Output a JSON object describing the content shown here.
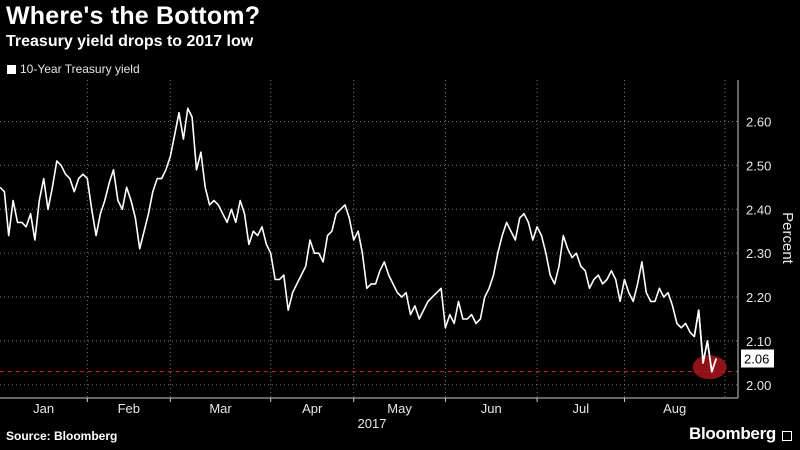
{
  "chart_data": {
    "type": "line",
    "title": "Where's the Bottom?",
    "subtitle": "Treasury yield drops to 2017 low",
    "ylabel": "Percent",
    "year_label": "2017",
    "source": "Source: Bloomberg",
    "brand": "Bloomberg",
    "ylim": [
      1.97,
      2.69
    ],
    "yticks": [
      2.0,
      2.1,
      2.2,
      2.3,
      2.4,
      2.5,
      2.6
    ],
    "ytick_labels": [
      "2.00",
      "2.10",
      "2.20",
      "2.30",
      "2.40",
      "2.50",
      "2.60"
    ],
    "months": [
      "Jan",
      "Feb",
      "Mar",
      "Apr",
      "May",
      "Jun",
      "Jul",
      "Aug"
    ],
    "x_range": [
      0,
      169
    ],
    "month_starts": [
      0,
      20,
      39,
      62,
      81,
      102,
      123,
      143,
      166
    ],
    "grid": true,
    "legend_position": "top-left",
    "last_value_label": "2.06",
    "reference_line": 2.03,
    "colors": {
      "line": "#ffffff",
      "grid": "#777777",
      "reference": "#cc2233",
      "highlight": "#a8151d"
    },
    "series": [
      {
        "name": "10-Year Treasury yield",
        "values": [
          2.45,
          2.44,
          2.34,
          2.42,
          2.37,
          2.37,
          2.36,
          2.39,
          2.33,
          2.42,
          2.47,
          2.4,
          2.45,
          2.51,
          2.5,
          2.48,
          2.47,
          2.44,
          2.47,
          2.48,
          2.47,
          2.4,
          2.34,
          2.39,
          2.42,
          2.46,
          2.49,
          2.42,
          2.4,
          2.45,
          2.42,
          2.38,
          2.31,
          2.35,
          2.39,
          2.44,
          2.47,
          2.47,
          2.49,
          2.52,
          2.57,
          2.62,
          2.56,
          2.63,
          2.61,
          2.49,
          2.53,
          2.45,
          2.41,
          2.42,
          2.41,
          2.39,
          2.37,
          2.4,
          2.37,
          2.42,
          2.39,
          2.32,
          2.35,
          2.34,
          2.36,
          2.32,
          2.3,
          2.24,
          2.24,
          2.25,
          2.17,
          2.21,
          2.23,
          2.25,
          2.27,
          2.33,
          2.3,
          2.3,
          2.28,
          2.34,
          2.35,
          2.39,
          2.4,
          2.41,
          2.38,
          2.33,
          2.35,
          2.3,
          2.22,
          2.23,
          2.23,
          2.26,
          2.28,
          2.25,
          2.23,
          2.21,
          2.2,
          2.21,
          2.16,
          2.18,
          2.15,
          2.17,
          2.19,
          2.2,
          2.21,
          2.22,
          2.13,
          2.16,
          2.14,
          2.19,
          2.15,
          2.15,
          2.16,
          2.14,
          2.15,
          2.2,
          2.22,
          2.25,
          2.3,
          2.34,
          2.37,
          2.35,
          2.33,
          2.38,
          2.39,
          2.37,
          2.33,
          2.36,
          2.34,
          2.3,
          2.25,
          2.23,
          2.27,
          2.34,
          2.31,
          2.29,
          2.3,
          2.27,
          2.26,
          2.22,
          2.24,
          2.25,
          2.23,
          2.24,
          2.26,
          2.24,
          2.19,
          2.24,
          2.21,
          2.19,
          2.23,
          2.28,
          2.21,
          2.19,
          2.19,
          2.22,
          2.2,
          2.21,
          2.18,
          2.14,
          2.13,
          2.14,
          2.12,
          2.11,
          2.17,
          2.05,
          2.1,
          2.03,
          2.06
        ]
      }
    ]
  }
}
